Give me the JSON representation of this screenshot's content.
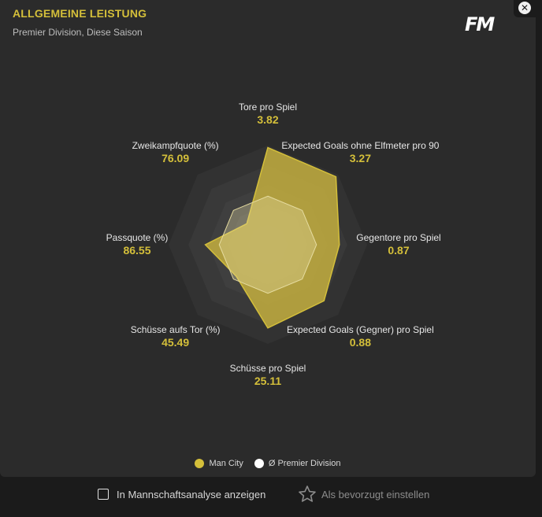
{
  "header": {
    "title": "ALLGEMEINE LEISTUNG",
    "subtitle": "Premier Division, Diese Saison",
    "logo": "FM",
    "close_icon": "close-icon"
  },
  "colors": {
    "accent": "#d4bf3a",
    "team_fill": "#c9b33f",
    "league_fill": "#ebe3ad",
    "panel": "#2b2b2b"
  },
  "chart_data": {
    "type": "radar",
    "axes": [
      {
        "name": "Tore pro Spiel",
        "value": "3.82"
      },
      {
        "name": "Expected Goals ohne Elfmeter pro 90",
        "value": "3.27"
      },
      {
        "name": "Gegentore pro Spiel",
        "value": "0.87"
      },
      {
        "name": "Expected Goals (Gegner) pro Spiel",
        "value": "0.88"
      },
      {
        "name": "Schüsse pro Spiel",
        "value": "25.11"
      },
      {
        "name": "Schüsse aufs Tor (%)",
        "value": "45.49"
      },
      {
        "name": "Passquote (%)",
        "value": "86.55"
      },
      {
        "name": "Zweikampfquote (%)",
        "value": "76.09"
      }
    ],
    "series": [
      {
        "name": "Man City",
        "values": [
          0.98,
          0.97,
          0.72,
          0.8,
          0.84,
          0.45,
          0.63,
          0.3
        ]
      },
      {
        "name": "Ø Premier Division",
        "values": [
          0.49,
          0.49,
          0.49,
          0.49,
          0.49,
          0.49,
          0.49,
          0.49
        ]
      }
    ]
  },
  "legend": [
    {
      "label": "Man City",
      "color": "#d4bf3a"
    },
    {
      "label": "Ø Premier Division",
      "color": "#ffffff"
    }
  ],
  "footer": {
    "checkbox_label": "In Mannschaftsanalyse anzeigen",
    "checkbox_checked": false,
    "favorite_label": "Als bevorzugt einstellen",
    "favorite_icon": "star-icon"
  }
}
